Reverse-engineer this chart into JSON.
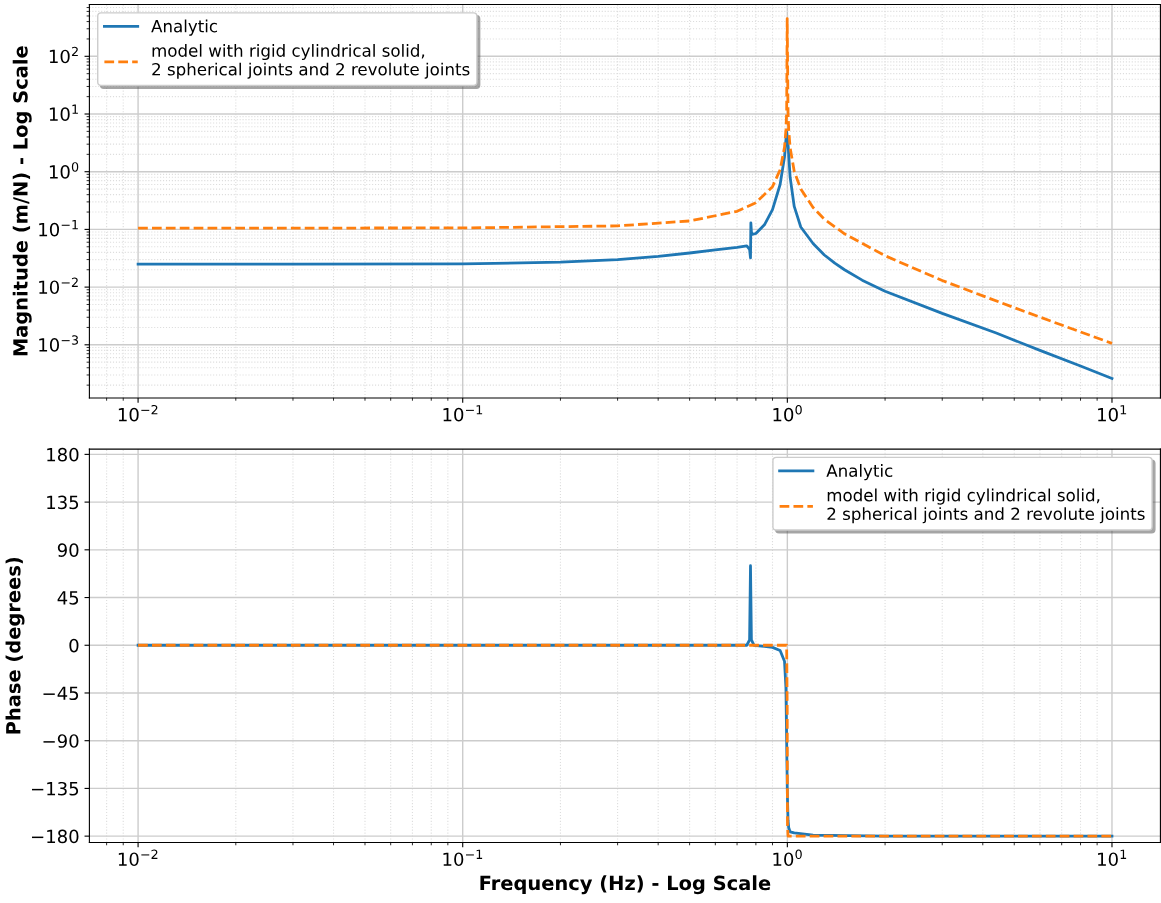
{
  "chart_data": [
    {
      "type": "line",
      "ylabel": "Magnitude (m/N) - Log Scale",
      "log": "xy",
      "grid": true,
      "legend": "top left",
      "xlim": [
        0.00708,
        14.1
      ],
      "xticks": [
        {
          "value": 0.01,
          "label": "10$^{−2}$"
        },
        {
          "value": 0.1,
          "label": "10$^{−1}$"
        },
        {
          "value": 1,
          "label": "10$^{0}$"
        },
        {
          "value": 10,
          "label": "10$^{1}$"
        }
      ],
      "ylim": [
        0.00012,
        790
      ],
      "yticks": [
        {
          "value": 0.001,
          "label": "10$^{−3}$"
        },
        {
          "value": 0.01,
          "label": "10$^{−2}$"
        },
        {
          "value": 0.1,
          "label": "10$^{−1}$"
        },
        {
          "value": 1,
          "label": "10$^{0}$"
        },
        {
          "value": 10,
          "label": "10$^{1}$"
        },
        {
          "value": 100,
          "label": "10$^{2}$"
        }
      ],
      "series": [
        {
          "name": "Analytic",
          "color": "#1f77b4",
          "line_style": "solid",
          "x": [
            0.01,
            0.03,
            0.1,
            0.2,
            0.3,
            0.4,
            0.5,
            0.6,
            0.7,
            0.75,
            0.765,
            0.77,
            0.772,
            0.775,
            0.78,
            0.8,
            0.85,
            0.9,
            0.95,
            0.98,
            0.995,
            1.005,
            1.02,
            1.05,
            1.1,
            1.2,
            1.3,
            1.4,
            1.5,
            1.7,
            2,
            3,
            4.4,
            6,
            8,
            10
          ],
          "values": [
            0.025,
            0.025,
            0.0252,
            0.027,
            0.03,
            0.034,
            0.039,
            0.044,
            0.049,
            0.052,
            0.045,
            0.032,
            0.13,
            0.09,
            0.082,
            0.085,
            0.12,
            0.22,
            0.6,
            1.8,
            5,
            3,
            0.8,
            0.25,
            0.11,
            0.057,
            0.036,
            0.026,
            0.02,
            0.0132,
            0.0085,
            0.0035,
            0.0016,
            0.0008,
            0.00043,
            0.00026
          ]
        },
        {
          "name": "model with rigid cylindrical solid,\n2 spherical joints and 2 revolute joints",
          "color": "#ff7f0e",
          "line_style": "dashed",
          "x": [
            0.01,
            0.1,
            0.3,
            0.5,
            0.7,
            0.8,
            0.9,
            0.95,
            0.98,
            0.99,
            0.995,
            0.999,
            1.005,
            1.01,
            1.02,
            1.05,
            1.1,
            1.2,
            1.3,
            1.5,
            2,
            3,
            5,
            7,
            10
          ],
          "values": [
            0.105,
            0.106,
            0.115,
            0.14,
            0.206,
            0.29,
            0.55,
            1.08,
            2.65,
            5.3,
            10.5,
            450,
            10.5,
            5.2,
            2.6,
            1.02,
            0.5,
            0.24,
            0.15,
            0.084,
            0.035,
            0.013,
            0.0044,
            0.0022,
            0.00106
          ]
        }
      ]
    },
    {
      "type": "line",
      "xlabel": "Frequency (Hz) - Log Scale",
      "ylabel": "Phase (degrees)",
      "log": "x",
      "grid": true,
      "legend": "top right",
      "xlim": [
        0.00708,
        14.1
      ],
      "xticks": [
        {
          "value": 0.01,
          "label": "10$^{−2}$"
        },
        {
          "value": 0.1,
          "label": "10$^{−1}$"
        },
        {
          "value": 1,
          "label": "10$^{0}$"
        },
        {
          "value": 10,
          "label": "10$^{1}$"
        }
      ],
      "ylim": [
        -186,
        185
      ],
      "yticks": [
        {
          "value": -180,
          "label": "−180"
        },
        {
          "value": -135,
          "label": "−135"
        },
        {
          "value": -90,
          "label": "−90"
        },
        {
          "value": -45,
          "label": "−45"
        },
        0,
        45,
        90,
        135,
        180
      ],
      "series": [
        {
          "name": "Analytic",
          "color": "#1f77b4",
          "line_style": "solid",
          "x": [
            0.01,
            0.1,
            0.5,
            0.75,
            0.765,
            0.77,
            0.775,
            0.79,
            0.85,
            0.9,
            0.95,
            0.98,
            0.99,
            0.995,
            1.0,
            1.005,
            1.01,
            1.02,
            1.05,
            1.2,
            2,
            10
          ],
          "values": [
            0,
            0,
            0,
            0,
            5,
            75,
            5,
            0,
            -1,
            -2,
            -5,
            -15,
            -40,
            -90,
            -140,
            -165,
            -172,
            -176,
            -177,
            -179,
            -180,
            -180
          ]
        },
        {
          "name": "model with rigid cylindrical solid,\n2 spherical joints and 2 revolute joints",
          "color": "#ff7f0e",
          "line_style": "dashed",
          "x": [
            0.01,
            0.1,
            0.5,
            0.9,
            0.995,
            0.999,
            1.001,
            1.005,
            2,
            10
          ],
          "values": [
            0,
            0,
            0,
            0,
            0,
            -60,
            -170,
            -180,
            -180,
            -180
          ]
        }
      ]
    }
  ]
}
